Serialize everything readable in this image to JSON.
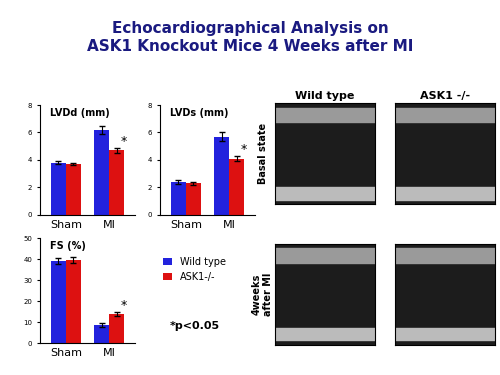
{
  "title": "Echocardiographical Analysis on\nASK1 Knockout Mice 4 Weeks after MI",
  "note": "*p<0.05",
  "images": {
    "columns": [
      "Wild type",
      "ASK1 -/-"
    ],
    "rows": [
      "Basal state",
      "4weeks\nafter MI"
    ]
  },
  "chart_data": [
    {
      "type": "bar",
      "title": "LVDd (mm)",
      "categories": [
        "Sham",
        "MI"
      ],
      "ylim": [
        0,
        8
      ],
      "yticks": [
        0,
        2,
        4,
        6,
        8
      ],
      "series": [
        {
          "name": "Wild type",
          "color": "#2222dd",
          "values": [
            3.8,
            6.2
          ],
          "error": [
            0.1,
            0.3
          ]
        },
        {
          "name": "ASK1-/-",
          "color": "#dd1111",
          "values": [
            3.7,
            4.7
          ],
          "error": [
            0.1,
            0.2
          ]
        }
      ],
      "annotations": [
        {
          "text": "*",
          "category": "MI",
          "series": "ASK1-/-"
        }
      ]
    },
    {
      "type": "bar",
      "title": "LVDs (mm)",
      "categories": [
        "Sham",
        "MI"
      ],
      "ylim": [
        0,
        8
      ],
      "yticks": [
        0,
        2,
        4,
        6,
        8
      ],
      "series": [
        {
          "name": "Wild type",
          "color": "#2222dd",
          "values": [
            2.4,
            5.7
          ],
          "error": [
            0.15,
            0.3
          ]
        },
        {
          "name": "ASK1-/-",
          "color": "#dd1111",
          "values": [
            2.3,
            4.1
          ],
          "error": [
            0.1,
            0.2
          ]
        }
      ],
      "annotations": [
        {
          "text": "*",
          "category": "MI",
          "series": "ASK1-/-"
        }
      ]
    },
    {
      "type": "bar",
      "title": "FS (%)",
      "categories": [
        "Sham",
        "MI"
      ],
      "ylim": [
        0,
        50
      ],
      "yticks": [
        0,
        10,
        20,
        30,
        40,
        50
      ],
      "legend": "center left",
      "series": [
        {
          "name": "Wild type",
          "color": "#2222dd",
          "values": [
            39,
            8.5
          ],
          "error": [
            1.5,
            1
          ]
        },
        {
          "name": "ASK1-/-",
          "color": "#dd1111",
          "values": [
            39.5,
            14
          ],
          "error": [
            1.5,
            1
          ]
        }
      ],
      "annotations": [
        {
          "text": "*",
          "category": "MI",
          "series": "ASK1-/-"
        }
      ]
    }
  ]
}
